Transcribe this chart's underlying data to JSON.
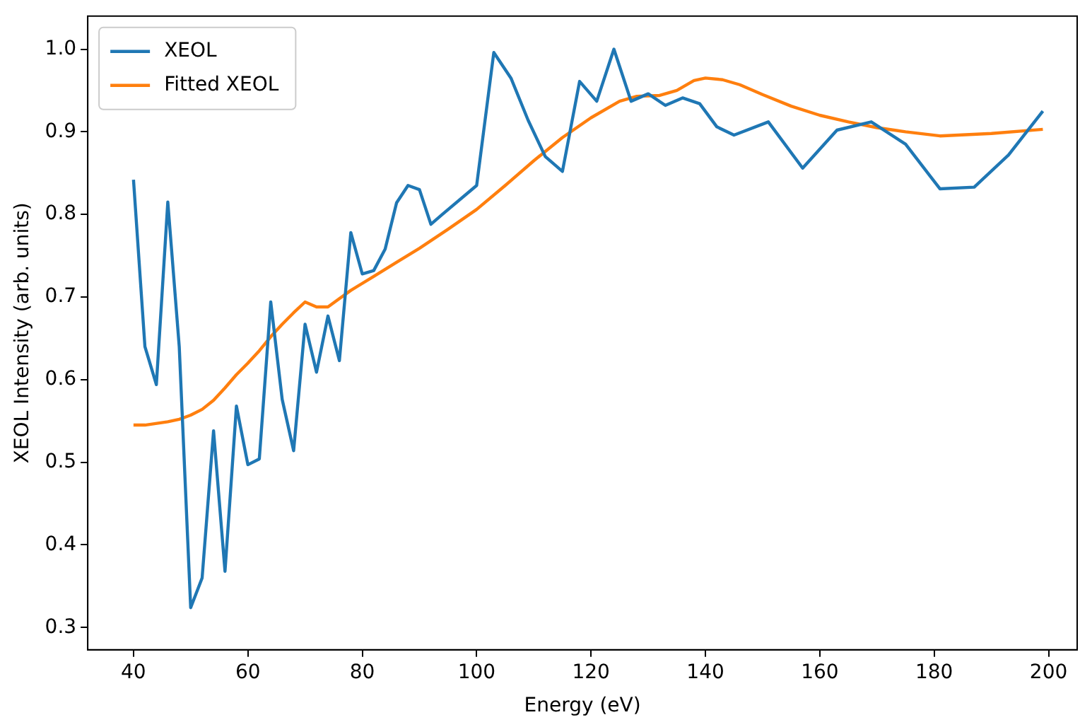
{
  "chart_data": {
    "type": "line",
    "xlabel": "Energy (eV)",
    "ylabel": "XEOL Intensity (arb. units)",
    "legend": "top left",
    "grid": false,
    "xlim": [
      32,
      205
    ],
    "ylim": [
      0.273,
      1.04
    ],
    "xticks": [
      40,
      60,
      80,
      100,
      120,
      140,
      160,
      180,
      200
    ],
    "yticks": [
      {
        "value": 0.3,
        "label": "0.3"
      },
      {
        "value": 0.4,
        "label": "0.4"
      },
      {
        "value": 0.5,
        "label": "0.5"
      },
      {
        "value": 0.6,
        "label": "0.6"
      },
      {
        "value": 0.7,
        "label": "0.7"
      },
      {
        "value": 0.8,
        "label": "0.8"
      },
      {
        "value": 0.9,
        "label": "0.9"
      },
      {
        "value": 1.0,
        "label": "1.0"
      }
    ],
    "series": [
      {
        "name": "XEOL",
        "color": "#1f77b4",
        "x": [
          40,
          42,
          44,
          46,
          48,
          50,
          52,
          54,
          56,
          58,
          60,
          62,
          64,
          66,
          68,
          70,
          72,
          74,
          76,
          78,
          80,
          82,
          84,
          86,
          88,
          90,
          92,
          94,
          100,
          103,
          106,
          109,
          112,
          115,
          118,
          121,
          124,
          127,
          130,
          133,
          136,
          139,
          142,
          145,
          151,
          157,
          163,
          169,
          175,
          181,
          187,
          193,
          199
        ],
        "values": [
          0.842,
          0.64,
          0.594,
          0.815,
          0.64,
          0.324,
          0.36,
          0.538,
          0.368,
          0.568,
          0.497,
          0.504,
          0.694,
          0.576,
          0.514,
          0.667,
          0.609,
          0.677,
          0.623,
          0.778,
          0.728,
          0.732,
          0.758,
          0.814,
          0.835,
          0.83,
          0.788,
          0.8,
          0.835,
          0.996,
          0.965,
          0.914,
          0.87,
          0.852,
          0.961,
          0.937,
          1.0,
          0.937,
          0.946,
          0.932,
          0.941,
          0.934,
          0.906,
          0.896,
          0.912,
          0.856,
          0.902,
          0.912,
          0.885,
          0.831,
          0.833,
          0.872,
          0.925
        ]
      },
      {
        "name": "Fitted XEOL",
        "color": "#ff7f0e",
        "x": [
          40,
          42,
          46,
          48,
          50,
          52,
          54,
          56,
          58,
          60,
          62,
          64,
          66,
          68,
          70,
          72,
          74,
          76,
          78,
          82,
          86,
          90,
          95,
          100,
          105,
          110,
          115,
          120,
          125,
          128,
          132,
          135,
          138,
          140,
          143,
          146,
          150,
          155,
          160,
          165,
          170,
          175,
          181,
          190,
          199
        ],
        "values": [
          0.545,
          0.545,
          0.549,
          0.552,
          0.557,
          0.564,
          0.575,
          0.59,
          0.606,
          0.62,
          0.635,
          0.652,
          0.667,
          0.681,
          0.694,
          0.688,
          0.688,
          0.698,
          0.708,
          0.725,
          0.742,
          0.759,
          0.782,
          0.806,
          0.835,
          0.865,
          0.893,
          0.917,
          0.937,
          0.943,
          0.944,
          0.95,
          0.962,
          0.965,
          0.963,
          0.957,
          0.945,
          0.931,
          0.92,
          0.912,
          0.905,
          0.9,
          0.895,
          0.898,
          0.903
        ]
      }
    ]
  }
}
